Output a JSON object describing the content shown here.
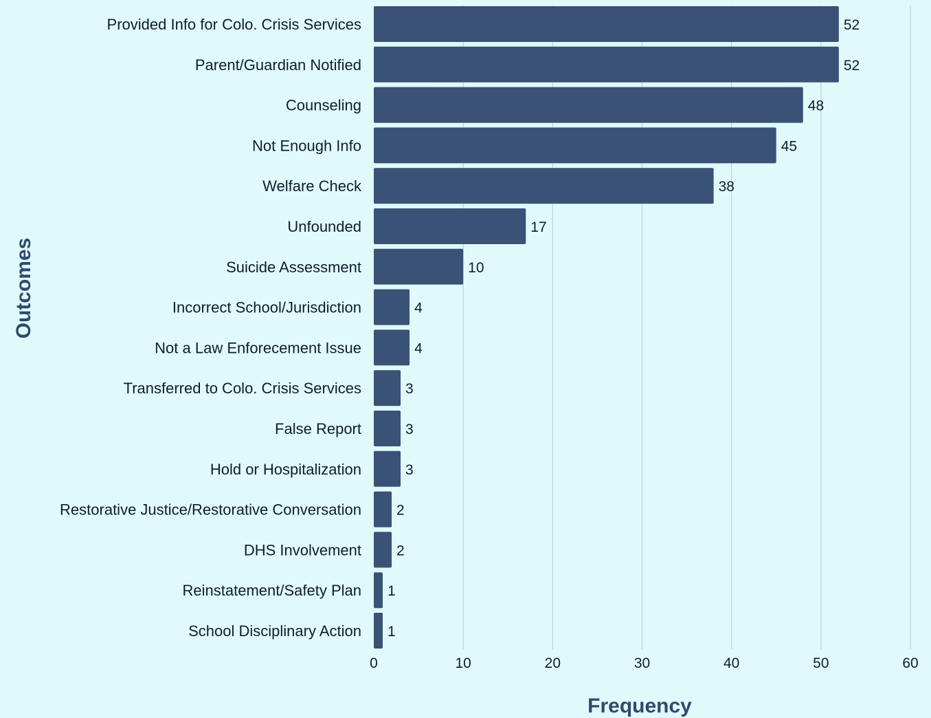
{
  "chart_data": {
    "type": "bar",
    "orientation": "horizontal",
    "xlabel": "Frequency",
    "ylabel": "Outcomes",
    "xlim": [
      0,
      60
    ],
    "xticks": [
      0,
      10,
      20,
      30,
      40,
      50,
      60
    ],
    "grid": "vertical",
    "bar_color": "#3a5275",
    "background_color": "#e0fafb",
    "categories": [
      "Provided Info for Colo. Crisis Services",
      "Parent/Guardian Notified",
      "Counseling",
      "Not Enough Info",
      "Welfare Check",
      "Unfounded",
      "Suicide Assessment",
      "Incorrect School/Jurisdiction",
      "Not a Law Enforecement Issue",
      "Transferred to Colo. Crisis Services",
      "False Report",
      "Hold or Hospitalization",
      "Restorative Justice/Restorative Conversation",
      "DHS Involvement",
      "Reinstatement/Safety Plan",
      "School Disciplinary Action"
    ],
    "values": [
      52,
      52,
      48,
      45,
      38,
      17,
      10,
      4,
      4,
      3,
      3,
      3,
      2,
      2,
      1,
      1
    ]
  }
}
